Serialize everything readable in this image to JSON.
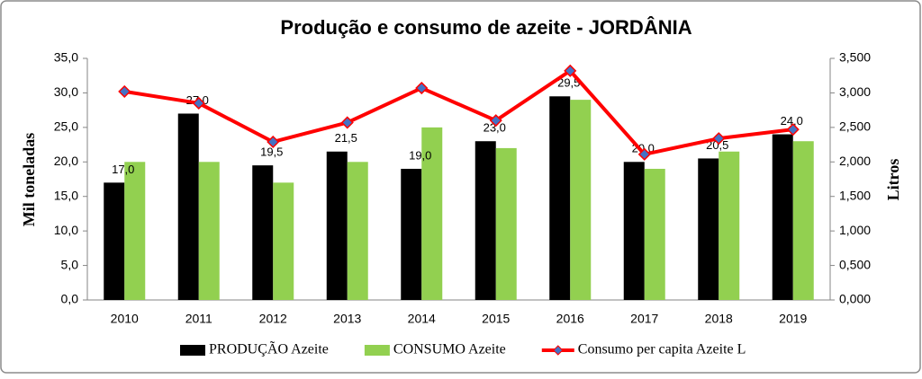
{
  "chart_data": {
    "type": "bar",
    "title": "Produção e consumo de azeite - JORDÂNIA",
    "y_label": "Mil toneladas",
    "y2_label": "Litros",
    "categories": [
      "2010",
      "2011",
      "2012",
      "2013",
      "2014",
      "2015",
      "2016",
      "2017",
      "2018",
      "2019"
    ],
    "series": [
      {
        "name": "PRODUÇÃO Azeite",
        "type": "bar",
        "color": "#000000",
        "values": [
          17.0,
          27.0,
          19.5,
          21.5,
          19.0,
          23.0,
          29.5,
          20.0,
          20.5,
          24.0
        ],
        "value_labels": [
          "17,0",
          "27,0",
          "19,5",
          "21,5",
          "19,0",
          "23,0",
          "29,5",
          "20,0",
          "20,5",
          "24,0"
        ]
      },
      {
        "name": "CONSUMO Azeite",
        "type": "bar",
        "color": "#92d050",
        "values": [
          20.0,
          20.0,
          17.0,
          20.0,
          25.0,
          22.0,
          29.0,
          19.0,
          21.5,
          23.0
        ]
      },
      {
        "name": "Consumo per capita Azeite L",
        "type": "line",
        "axis": "y2",
        "color": "#ff0000",
        "marker_color": "#4472c4",
        "values": [
          3.02,
          2.85,
          2.29,
          2.57,
          3.07,
          2.6,
          3.32,
          2.11,
          2.34,
          2.47
        ]
      }
    ],
    "ylim": [
      0,
      35
    ],
    "yticks": [
      {
        "value": 0,
        "label": "0,0"
      },
      {
        "value": 5,
        "label": "5,0"
      },
      {
        "value": 10,
        "label": "10,0"
      },
      {
        "value": 15,
        "label": "15,0"
      },
      {
        "value": 20,
        "label": "20,0"
      },
      {
        "value": 25,
        "label": "25,0"
      },
      {
        "value": 30,
        "label": "30,0"
      },
      {
        "value": 35,
        "label": "35,0"
      }
    ],
    "y2lim": [
      0,
      3.5
    ],
    "y2ticks": [
      {
        "value": 0,
        "label": "0,000"
      },
      {
        "value": 0.5,
        "label": "0,500"
      },
      {
        "value": 1,
        "label": "1,000"
      },
      {
        "value": 1.5,
        "label": "1,500"
      },
      {
        "value": 2,
        "label": "2,000"
      },
      {
        "value": 2.5,
        "label": "2,500"
      },
      {
        "value": 3,
        "label": "3,000"
      },
      {
        "value": 3.5,
        "label": "3,500"
      }
    ],
    "grid": false,
    "legend": "bottom"
  }
}
